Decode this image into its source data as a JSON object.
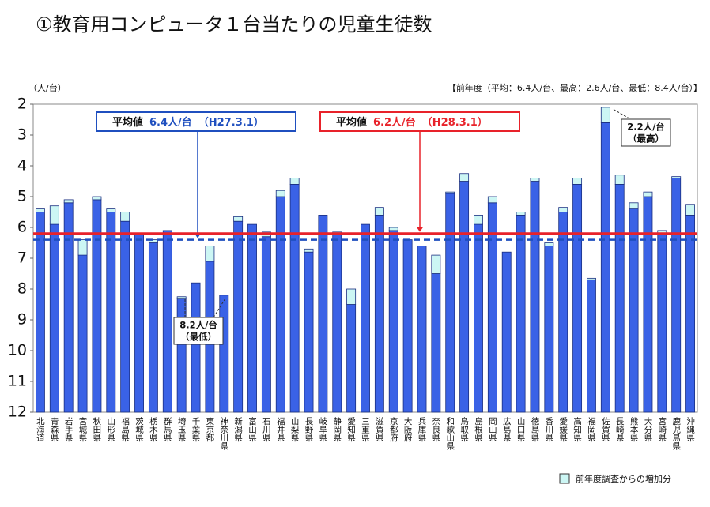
{
  "chart_data": {
    "type": "bar",
    "title": "①教育用コンピュータ１台当たりの児童生徒数",
    "y_unit": "（人/台）",
    "note": "【前年度（平均：6.4人/台、最高：2.6人/台、最低：8.4人/台）】",
    "categories": [
      "北海道",
      "青森県",
      "岩手県",
      "宮城県",
      "秋田県",
      "山形県",
      "福島県",
      "茨城県",
      "栃木県",
      "群馬県",
      "埼玉県",
      "千葉県",
      "東京都",
      "神奈川県",
      "新潟県",
      "富山県",
      "石川県",
      "福井県",
      "山梨県",
      "長野県",
      "岐阜県",
      "静岡県",
      "愛知県",
      "三重県",
      "滋賀県",
      "京都府",
      "大阪府",
      "兵庫県",
      "奈良県",
      "和歌山県",
      "鳥取県",
      "島根県",
      "岡山県",
      "広島県",
      "山口県",
      "徳島県",
      "香川県",
      "愛媛県",
      "高知県",
      "福岡県",
      "佐賀県",
      "長崎県",
      "熊本県",
      "大分県",
      "宮崎県",
      "鹿児島県",
      "沖縄県"
    ],
    "series": [
      {
        "color": "#3a62e6",
        "values": [
          5.5,
          5.9,
          5.2,
          6.9,
          5.1,
          5.5,
          5.8,
          6.2,
          6.5,
          6.1,
          8.3,
          7.8,
          7.1,
          8.2,
          5.8,
          5.9,
          6.3,
          5.0,
          4.6,
          6.8,
          5.6,
          6.2,
          8.5,
          5.9,
          5.6,
          6.1,
          6.4,
          6.6,
          7.5,
          4.9,
          4.5,
          5.9,
          5.2,
          6.8,
          5.6,
          4.5,
          6.6,
          5.5,
          4.6,
          7.7,
          2.6,
          4.6,
          5.4,
          5.0,
          6.2,
          4.4,
          5.6
        ]
      },
      {
        "name": "前年度調査からの増加分",
        "color": "#ccf6f4",
        "values": [
          0.1,
          0.6,
          0.1,
          0.5,
          0.1,
          0.1,
          0.3,
          0,
          0.1,
          0,
          0.05,
          0,
          0.5,
          0,
          0.15,
          0,
          0.15,
          0.2,
          0.2,
          0.1,
          0,
          0.05,
          0.5,
          0,
          0.25,
          0.1,
          0,
          0,
          0.6,
          0.05,
          0.25,
          0.3,
          0.2,
          0,
          0.1,
          0.1,
          0.1,
          0.15,
          0.2,
          0.05,
          0.5,
          0.3,
          0.2,
          0.15,
          0.1,
          0.05,
          0.35
        ]
      }
    ],
    "ylim": [
      12,
      2
    ],
    "yticks": [
      2,
      3,
      4,
      5,
      6,
      7,
      8,
      9,
      10,
      11,
      12
    ],
    "ref_lines": [
      {
        "value": 6.4,
        "color": "#1f4fbf",
        "dashed": true,
        "label": "平均値",
        "value_label": "6.4人/台",
        "date": "（H27.3.1）"
      },
      {
        "value": 6.2,
        "color": "#e8222a",
        "dashed": false,
        "label": "平均値",
        "value_label": "6.2人/台",
        "date": "（H28.3.1）"
      }
    ],
    "annotations": [
      {
        "lines": [
          "2.2人/台",
          "（最高）"
        ]
      },
      {
        "lines": [
          "8.2人/台",
          "（最低）"
        ]
      }
    ]
  }
}
